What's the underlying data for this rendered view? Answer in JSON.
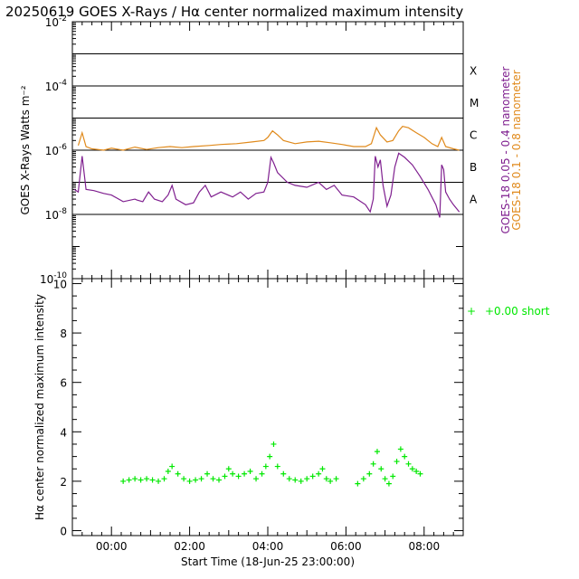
{
  "chart_data": [
    {
      "type": "line",
      "title": "20250619 GOES X-Rays / Hα center normalized maximum intensity",
      "ylabel": "GOES X-Rays Watts m⁻²",
      "yscale": "log",
      "ylim": [
        1e-10,
        0.01
      ],
      "xlim": [
        -1.0,
        9.0
      ],
      "ytick_labels": [
        {
          "value": 0.01,
          "base": "10",
          "exp": "-2"
        },
        {
          "value": 0.0001,
          "base": "10",
          "exp": "-4"
        },
        {
          "value": 1e-06,
          "base": "10",
          "exp": "-6"
        },
        {
          "value": 1e-08,
          "base": "10",
          "exp": "-8"
        },
        {
          "value": 1e-10,
          "base": "10",
          "exp": "-10"
        }
      ],
      "flare_class_lines": [
        1e-08,
        1e-07,
        1e-06,
        1e-05,
        0.0001,
        0.001
      ],
      "flare_classes": [
        {
          "label": "X",
          "value": 0.0003162
        },
        {
          "label": "M",
          "value": 3.162e-05
        },
        {
          "label": "C",
          "value": 3.162e-06
        },
        {
          "label": "B",
          "value": 3.162e-07
        },
        {
          "label": "A",
          "value": 3.162e-08
        }
      ],
      "legend": [
        {
          "label": "GOES-18 0.05 - 0.4 nanometer",
          "color": "#7f1f8f"
        },
        {
          "label": "GOES-18  0.1 - 0.8 nanometer",
          "color": "#e08a1c"
        }
      ],
      "series": [
        {
          "name": "GOES-18 0.1 - 0.8 nanometer",
          "color": "#e08a1c",
          "points": [
            [
              -0.85,
              1.4e-06
            ],
            [
              -0.75,
              3.5e-06
            ],
            [
              -0.65,
              1.3e-06
            ],
            [
              -0.5,
              1.1e-06
            ],
            [
              -0.2,
              1e-06
            ],
            [
              0.0,
              1.15e-06
            ],
            [
              0.3,
              1e-06
            ],
            [
              0.6,
              1.25e-06
            ],
            [
              0.9,
              1.05e-06
            ],
            [
              1.2,
              1.2e-06
            ],
            [
              1.5,
              1.3e-06
            ],
            [
              1.8,
              1.2e-06
            ],
            [
              2.1,
              1.3e-06
            ],
            [
              2.5,
              1.4e-06
            ],
            [
              2.8,
              1.5e-06
            ],
            [
              3.2,
              1.6e-06
            ],
            [
              3.6,
              1.8e-06
            ],
            [
              3.9,
              2e-06
            ],
            [
              4.0,
              2.5e-06
            ],
            [
              4.12,
              4e-06
            ],
            [
              4.25,
              3e-06
            ],
            [
              4.4,
              2e-06
            ],
            [
              4.7,
              1.6e-06
            ],
            [
              5.0,
              1.8e-06
            ],
            [
              5.3,
              1.9e-06
            ],
            [
              5.6,
              1.7e-06
            ],
            [
              5.9,
              1.5e-06
            ],
            [
              6.2,
              1.3e-06
            ],
            [
              6.5,
              1.3e-06
            ],
            [
              6.65,
              1.6e-06
            ],
            [
              6.78,
              5e-06
            ],
            [
              6.88,
              3e-06
            ],
            [
              7.05,
              1.8e-06
            ],
            [
              7.2,
              2e-06
            ],
            [
              7.35,
              4e-06
            ],
            [
              7.45,
              5.5e-06
            ],
            [
              7.6,
              5e-06
            ],
            [
              7.8,
              3.5e-06
            ],
            [
              8.0,
              2.5e-06
            ],
            [
              8.2,
              1.6e-06
            ],
            [
              8.35,
              1.3e-06
            ],
            [
              8.45,
              2.5e-06
            ],
            [
              8.55,
              1.3e-06
            ],
            [
              8.75,
              1.1e-06
            ],
            [
              8.9,
              1e-06
            ]
          ]
        },
        {
          "name": "GOES-18 0.05 - 0.4 nanometer",
          "color": "#7f1f8f",
          "points": [
            [
              -0.95,
              6e-08
            ],
            [
              -0.85,
              5e-08
            ],
            [
              -0.75,
              6.5e-07
            ],
            [
              -0.65,
              6e-08
            ],
            [
              -0.45,
              5.5e-08
            ],
            [
              -0.2,
              4.5e-08
            ],
            [
              0.0,
              4e-08
            ],
            [
              0.3,
              2.5e-08
            ],
            [
              0.6,
              3e-08
            ],
            [
              0.65,
              2.8e-08
            ],
            [
              0.8,
              2.5e-08
            ],
            [
              0.95,
              5e-08
            ],
            [
              1.1,
              3e-08
            ],
            [
              1.3,
              2.5e-08
            ],
            [
              1.45,
              4e-08
            ],
            [
              1.55,
              8e-08
            ],
            [
              1.65,
              3e-08
            ],
            [
              1.9,
              2e-08
            ],
            [
              2.1,
              2.3e-08
            ],
            [
              2.25,
              5e-08
            ],
            [
              2.4,
              8e-08
            ],
            [
              2.55,
              3.5e-08
            ],
            [
              2.8,
              5e-08
            ],
            [
              3.1,
              3.5e-08
            ],
            [
              3.3,
              5e-08
            ],
            [
              3.5,
              3e-08
            ],
            [
              3.7,
              4.5e-08
            ],
            [
              3.9,
              5e-08
            ],
            [
              4.0,
              1e-07
            ],
            [
              4.08,
              6e-07
            ],
            [
              4.15,
              4e-07
            ],
            [
              4.25,
              2e-07
            ],
            [
              4.5,
              1e-07
            ],
            [
              4.7,
              8e-08
            ],
            [
              5.0,
              7e-08
            ],
            [
              5.3,
              1e-07
            ],
            [
              5.5,
              6e-08
            ],
            [
              5.7,
              8e-08
            ],
            [
              5.9,
              4e-08
            ],
            [
              6.2,
              3.5e-08
            ],
            [
              6.5,
              2e-08
            ],
            [
              6.62,
              1.2e-08
            ],
            [
              6.7,
              3e-08
            ],
            [
              6.75,
              6.5e-07
            ],
            [
              6.82,
              3e-07
            ],
            [
              6.88,
              5e-07
            ],
            [
              6.95,
              8e-08
            ],
            [
              7.05,
              1.8e-08
            ],
            [
              7.15,
              4e-08
            ],
            [
              7.25,
              3e-07
            ],
            [
              7.35,
              8e-07
            ],
            [
              7.5,
              6e-07
            ],
            [
              7.7,
              3.5e-07
            ],
            [
              7.9,
              1.5e-07
            ],
            [
              8.1,
              6e-08
            ],
            [
              8.3,
              2e-08
            ],
            [
              8.4,
              8e-09
            ],
            [
              8.45,
              3.5e-07
            ],
            [
              8.5,
              2.5e-07
            ],
            [
              8.55,
              5e-08
            ],
            [
              8.65,
              3e-08
            ],
            [
              8.75,
              2e-08
            ],
            [
              8.9,
              1.2e-08
            ]
          ]
        }
      ]
    },
    {
      "type": "scatter",
      "ylabel": "Hα center normalized maximum intensity",
      "xlabel": "Start Time (18-Jun-25 23:00:00)",
      "ylim": [
        -0.2,
        10.2
      ],
      "xlim": [
        -1.0,
        9.0
      ],
      "x_tick_labels": [
        {
          "value": 0,
          "label": "00:00"
        },
        {
          "value": 2,
          "label": "02:00"
        },
        {
          "value": 4,
          "label": "04:00"
        },
        {
          "value": 6,
          "label": "06:00"
        },
        {
          "value": 8,
          "label": "08:00"
        }
      ],
      "y_tick_labels": [
        {
          "value": 0,
          "label": "0"
        },
        {
          "value": 2,
          "label": "2"
        },
        {
          "value": 4,
          "label": "4"
        },
        {
          "value": 6,
          "label": "6"
        },
        {
          "value": 8,
          "label": "8"
        },
        {
          "value": 10,
          "label": "10"
        }
      ],
      "legend": [
        {
          "marker": "+",
          "label": "+0.00 short",
          "color": "#00e800"
        }
      ],
      "series": [
        {
          "name": "+0.00 short",
          "color": "#00e800",
          "points": [
            [
              0.3,
              2.0
            ],
            [
              0.45,
              2.05
            ],
            [
              0.6,
              2.1
            ],
            [
              0.75,
              2.05
            ],
            [
              0.9,
              2.1
            ],
            [
              1.05,
              2.05
            ],
            [
              1.2,
              2.0
            ],
            [
              1.35,
              2.1
            ],
            [
              1.45,
              2.4
            ],
            [
              1.55,
              2.6
            ],
            [
              1.7,
              2.3
            ],
            [
              1.85,
              2.1
            ],
            [
              2.0,
              2.0
            ],
            [
              2.15,
              2.05
            ],
            [
              2.3,
              2.1
            ],
            [
              2.45,
              2.3
            ],
            [
              2.6,
              2.1
            ],
            [
              2.75,
              2.05
            ],
            [
              2.9,
              2.2
            ],
            [
              3.0,
              2.5
            ],
            [
              3.1,
              2.3
            ],
            [
              3.25,
              2.2
            ],
            [
              3.4,
              2.3
            ],
            [
              3.55,
              2.4
            ],
            [
              3.7,
              2.1
            ],
            [
              3.85,
              2.3
            ],
            [
              3.95,
              2.6
            ],
            [
              4.05,
              3.0
            ],
            [
              4.15,
              3.5
            ],
            [
              4.25,
              2.6
            ],
            [
              4.4,
              2.3
            ],
            [
              4.55,
              2.1
            ],
            [
              4.7,
              2.05
            ],
            [
              4.85,
              2.0
            ],
            [
              5.0,
              2.1
            ],
            [
              5.15,
              2.2
            ],
            [
              5.3,
              2.3
            ],
            [
              5.4,
              2.5
            ],
            [
              5.5,
              2.1
            ],
            [
              5.6,
              2.0
            ],
            [
              5.75,
              2.1
            ],
            [
              6.3,
              1.9
            ],
            [
              6.45,
              2.1
            ],
            [
              6.6,
              2.3
            ],
            [
              6.7,
              2.7
            ],
            [
              6.8,
              3.2
            ],
            [
              6.9,
              2.5
            ],
            [
              7.0,
              2.1
            ],
            [
              7.1,
              1.9
            ],
            [
              7.2,
              2.2
            ],
            [
              7.3,
              2.8
            ],
            [
              7.4,
              3.3
            ],
            [
              7.5,
              3.0
            ],
            [
              7.6,
              2.7
            ],
            [
              7.7,
              2.5
            ],
            [
              7.8,
              2.4
            ],
            [
              7.9,
              2.3
            ]
          ]
        }
      ]
    }
  ]
}
